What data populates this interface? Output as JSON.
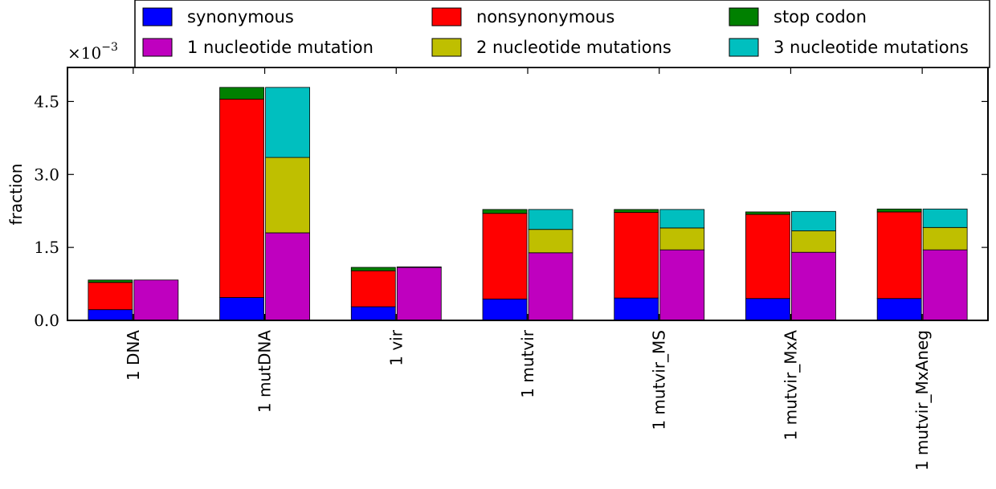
{
  "chart_data": {
    "type": "bar",
    "stacked": true,
    "ylabel": "fraction",
    "scale_multiplier": "×10",
    "scale_exponent": "−3",
    "ylim": [
      0,
      5.2
    ],
    "yticks": [
      {
        "value": 0.0,
        "label": "0.0"
      },
      {
        "value": 1.5,
        "label": "1.5"
      },
      {
        "value": 3.0,
        "label": "3.0"
      },
      {
        "value": 4.5,
        "label": "4.5"
      }
    ],
    "categories": [
      "1 DNA",
      "1 mutDNA",
      "1 vir",
      "1 mutvir",
      "1 mutvir_MS",
      "1 mutvir_MxA",
      "1 mutvir_MxAneg"
    ],
    "legend_position": "top",
    "groups": [
      {
        "stack": "left",
        "series": [
          {
            "name": "synonymous",
            "color": "#0000ff",
            "values": [
              0.22,
              0.47,
              0.28,
              0.44,
              0.46,
              0.45,
              0.45
            ]
          },
          {
            "name": "nonsynonymous",
            "color": "#ff0000",
            "values": [
              0.56,
              4.08,
              0.74,
              1.76,
              1.76,
              1.73,
              1.78
            ]
          },
          {
            "name": "stop codon",
            "color": "#008000",
            "values": [
              0.05,
              0.24,
              0.07,
              0.08,
              0.06,
              0.05,
              0.06
            ]
          }
        ]
      },
      {
        "stack": "right",
        "series": [
          {
            "name": "1 nucleotide mutation",
            "color": "#bf00bf",
            "values": [
              0.83,
              1.8,
              1.09,
              1.39,
              1.45,
              1.4,
              1.45
            ]
          },
          {
            "name": "2 nucleotide mutations",
            "color": "#bfbf00",
            "values": [
              0.0,
              1.55,
              0.0,
              0.48,
              0.45,
              0.44,
              0.46
            ]
          },
          {
            "name": "3 nucleotide mutations",
            "color": "#00bfbf",
            "values": [
              0.0,
              1.44,
              0.01,
              0.41,
              0.38,
              0.4,
              0.38
            ]
          }
        ]
      }
    ],
    "legend": [
      {
        "name": "synonymous",
        "color": "#0000ff"
      },
      {
        "name": "nonsynonymous",
        "color": "#ff0000"
      },
      {
        "name": "stop codon",
        "color": "#008000"
      },
      {
        "name": "1 nucleotide mutation",
        "color": "#bf00bf"
      },
      {
        "name": "2 nucleotide mutations",
        "color": "#bfbf00"
      },
      {
        "name": "3 nucleotide mutations",
        "color": "#00bfbf"
      }
    ]
  }
}
